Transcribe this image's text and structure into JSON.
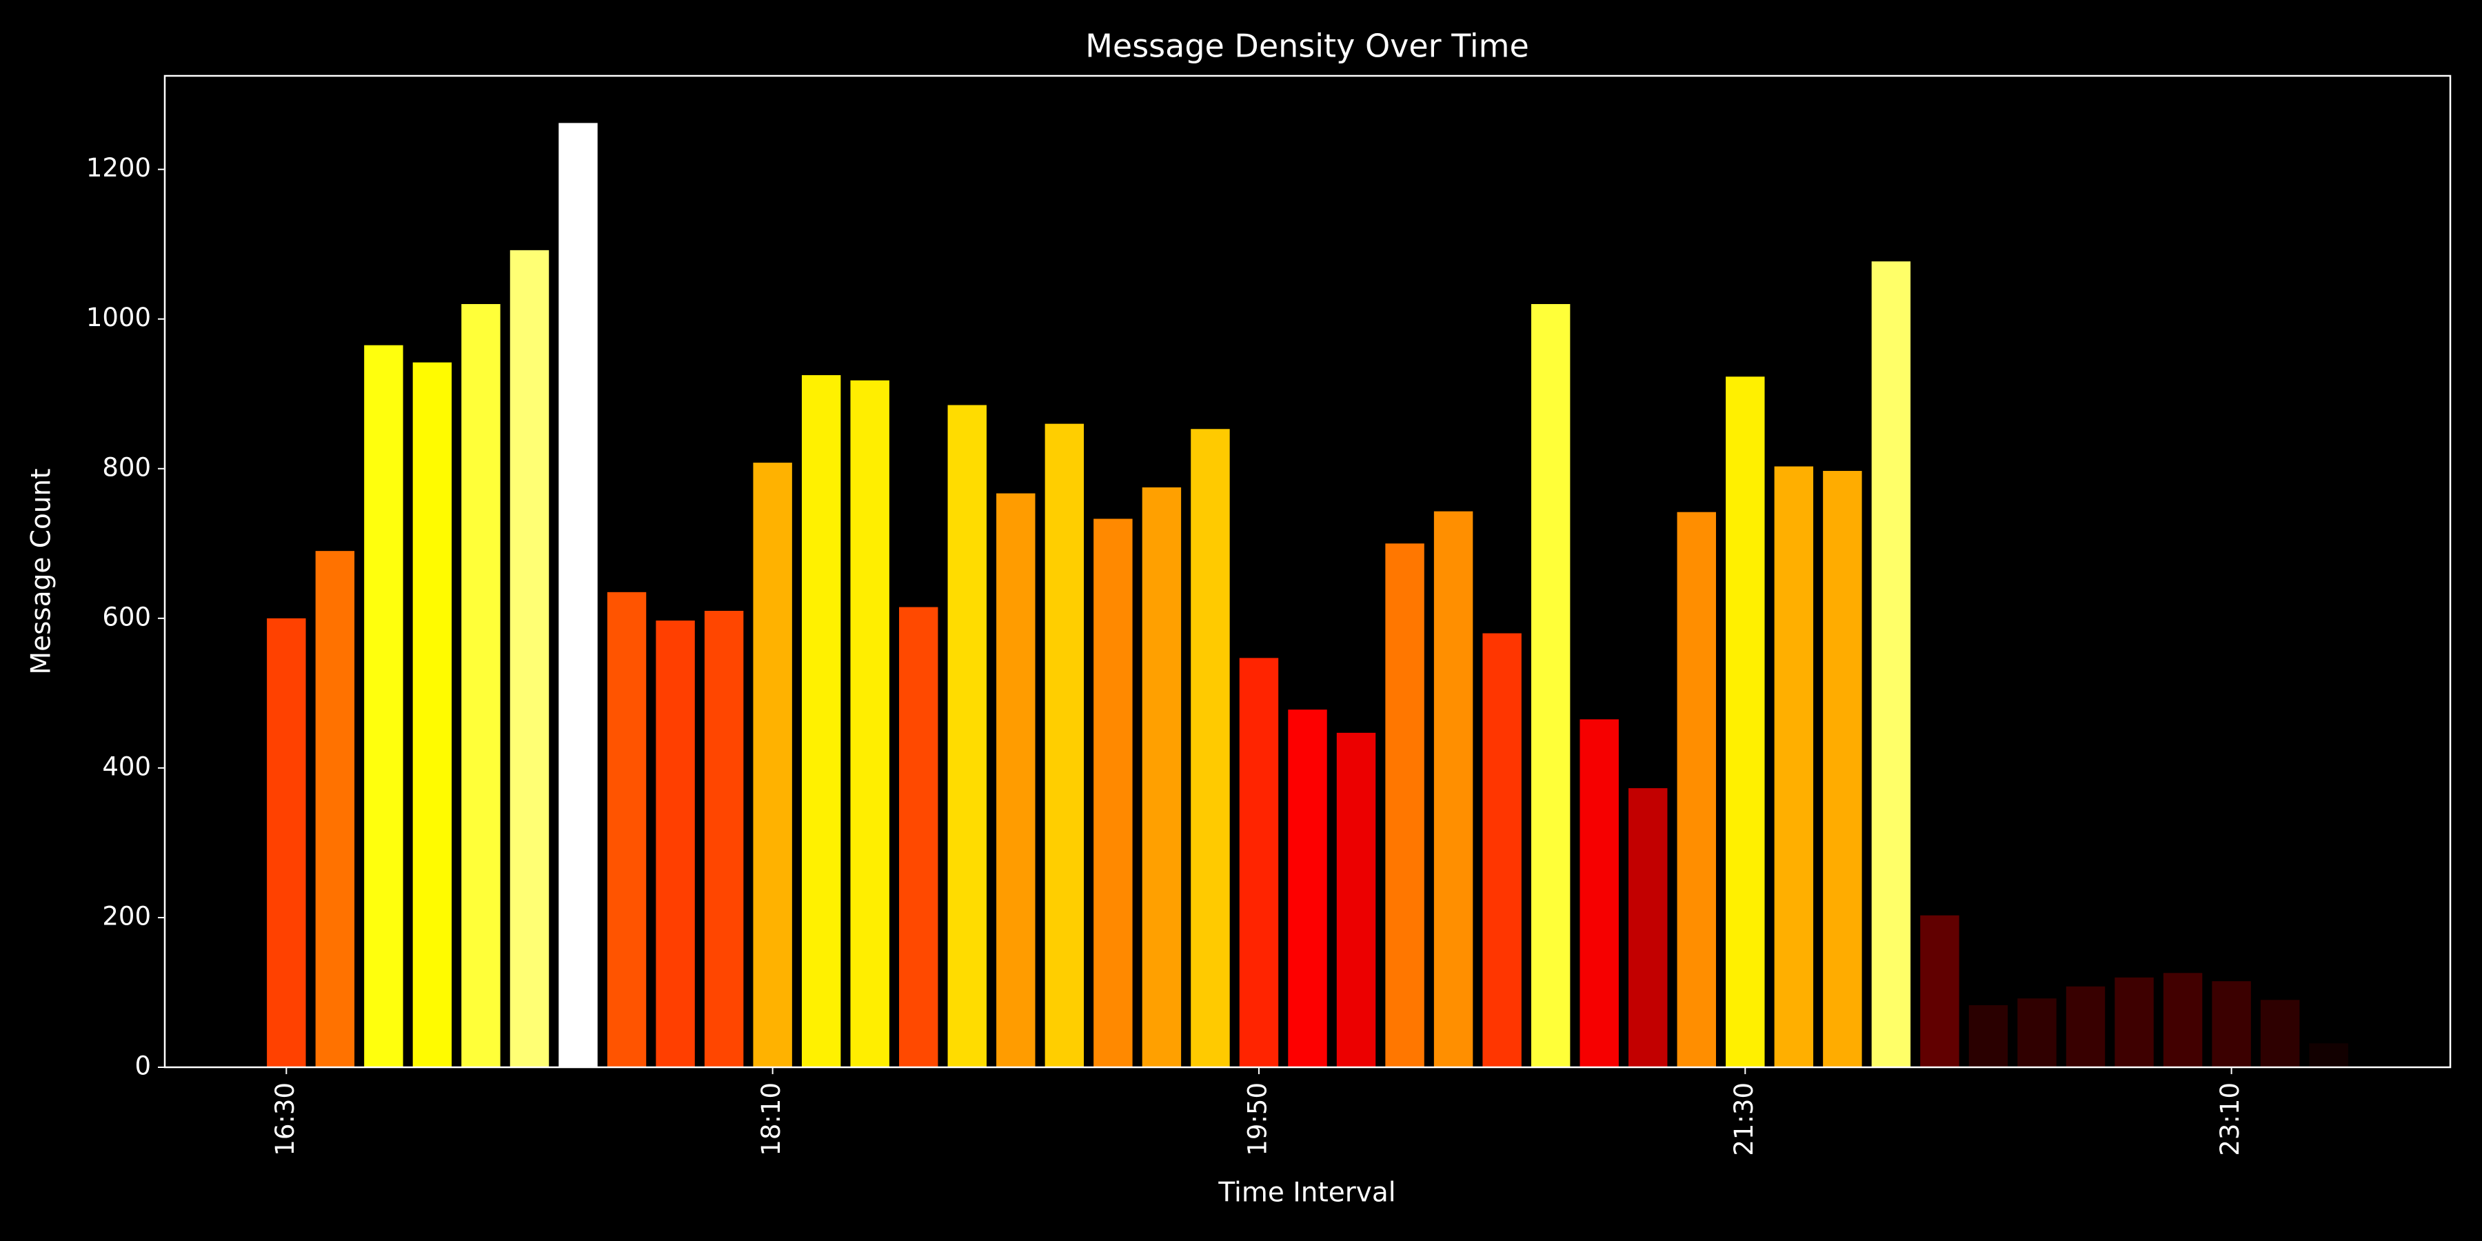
{
  "chart_data": {
    "type": "bar",
    "title": "Message Density Over Time",
    "xlabel": "Time Interval",
    "ylabel": "Message Count",
    "categories": [
      "16:30",
      null,
      null,
      null,
      null,
      null,
      null,
      null,
      null,
      null,
      "18:10",
      null,
      null,
      null,
      null,
      null,
      null,
      null,
      null,
      null,
      "19:50",
      null,
      null,
      null,
      null,
      null,
      null,
      null,
      null,
      null,
      "21:30",
      null,
      null,
      null,
      null,
      null,
      null,
      null,
      null,
      null,
      "23:10",
      null,
      null
    ],
    "values": [
      600,
      690,
      965,
      942,
      1020,
      1092,
      1262,
      635,
      597,
      610,
      808,
      925,
      918,
      615,
      885,
      767,
      860,
      733,
      775,
      853,
      547,
      478,
      447,
      700,
      743,
      580,
      1020,
      465,
      373,
      742,
      923,
      803,
      797,
      1077,
      203,
      83,
      92,
      108,
      120,
      126,
      115,
      90,
      32
    ],
    "colors": [
      "#ff4100",
      "#ff7200",
      "#ffff0d",
      "#fffb00",
      "#ffff39",
      "#ffff74",
      "#ffffff",
      "#ff5400",
      "#ff3f00",
      "#ff4600",
      "#ffb200",
      "#fff100",
      "#ffee00",
      "#ff4900",
      "#ffdc00",
      "#ff9c00",
      "#ffce00",
      "#ff8900",
      "#ffa000",
      "#ffca00",
      "#ff2400",
      "#fd0000",
      "#ec0000",
      "#ff7700",
      "#ff8f00",
      "#ff3600",
      "#ffff39",
      "#f60000",
      "#c20000",
      "#ff8e00",
      "#fff000",
      "#ffaf00",
      "#ffac00",
      "#ffff68",
      "#610000",
      "#2a0000",
      "#300000",
      "#380000",
      "#3e0000",
      "#420000",
      "#3b0000",
      "#2e0000",
      "#120000"
    ],
    "ylim": [
      0,
      1325
    ],
    "yticks": [
      0,
      200,
      400,
      600,
      800,
      1000,
      1200
    ],
    "grid": false
  }
}
